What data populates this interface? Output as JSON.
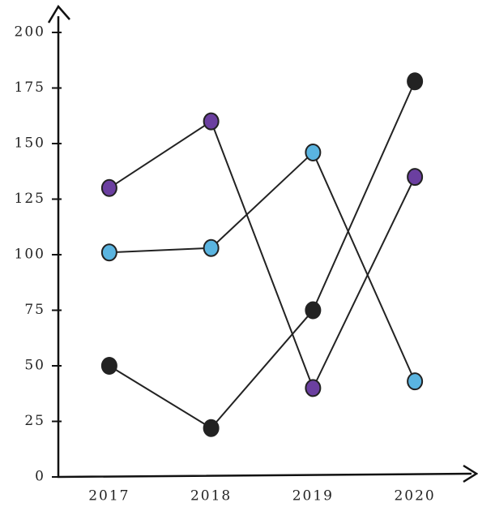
{
  "chart_data": {
    "type": "line",
    "categories": [
      "2017",
      "2018",
      "2019",
      "2020"
    ],
    "series": [
      {
        "color": "#6b3fa0",
        "values": [
          130,
          160,
          40,
          135
        ]
      },
      {
        "color": "#5ab4e0",
        "values": [
          101,
          103,
          146,
          43
        ]
      },
      {
        "color": "#222222",
        "values": [
          50,
          22,
          75,
          178
        ]
      }
    ],
    "ylim": [
      0,
      200
    ],
    "yticks": [
      0,
      25,
      50,
      75,
      100,
      125,
      150,
      175,
      200
    ],
    "grid": false
  }
}
